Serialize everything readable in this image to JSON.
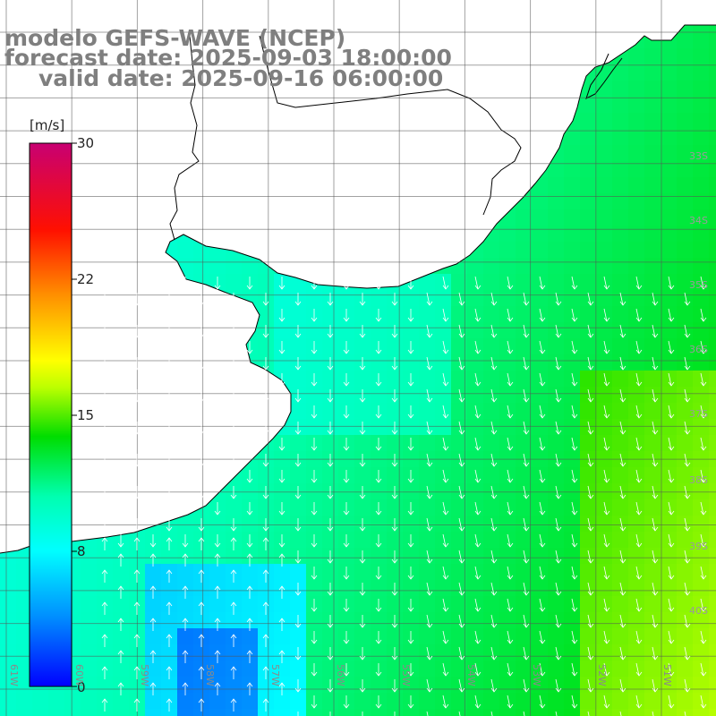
{
  "title": {
    "model": "modelo GEFS-WAVE (NCEP)",
    "forecast": "forecast date: 2025-09-03 18:00:00",
    "valid": "valid date: 2025-09-16 06:00:00"
  },
  "colorbar": {
    "unit": "[m/s]",
    "ticks": [
      "30",
      "22",
      "15",
      "8",
      "0"
    ],
    "range": [
      0,
      30
    ],
    "colors": [
      "#0000ff",
      "#00b4ff",
      "#00ffff",
      "#00ff00",
      "#ffff00",
      "#ff8000",
      "#ff0000",
      "#c8006e"
    ]
  },
  "longitude_labels": [
    "61W",
    "60W",
    "59W",
    "58W",
    "57W",
    "56W",
    "55W",
    "54W",
    "53W",
    "52W",
    "51W"
  ],
  "latitude_labels": [
    "33S",
    "34S",
    "35S",
    "36S",
    "37S",
    "38S",
    "39S",
    "40S"
  ],
  "map": {
    "field": "wind speed with direction arrows",
    "land_color": "#ffffff",
    "coastline_color": "#000000",
    "grid": true
  }
}
